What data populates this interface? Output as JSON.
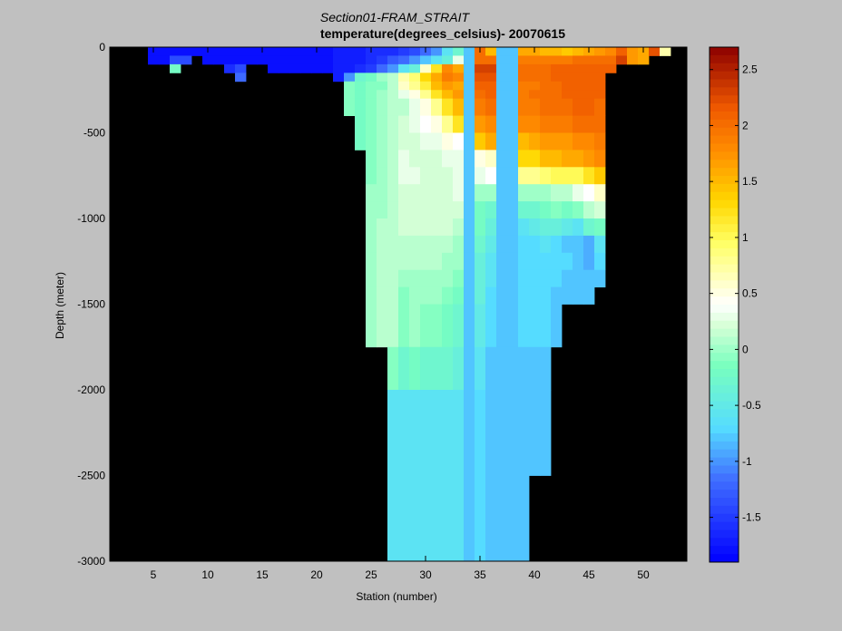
{
  "chart_data": {
    "type": "heatmap",
    "title": "Section01-FRAM_STRAIT",
    "subtitle": "temperature(degrees_celsius)- 20070615",
    "xlabel": "Station (number)",
    "ylabel": "Depth (meter)",
    "xlim": [
      1,
      54
    ],
    "ylim": [
      -3000,
      0
    ],
    "xticks": [
      "5",
      "10",
      "15",
      "20",
      "25",
      "30",
      "35",
      "40",
      "45",
      "50"
    ],
    "yticks": [
      "0",
      "-500",
      "-1000",
      "-1500",
      "-2000",
      "-2500",
      "-3000"
    ],
    "colorbar": {
      "range": [
        -1.9,
        2.7
      ],
      "ticks": [
        "2.5",
        "2",
        "1.5",
        "1",
        "0.5",
        "0",
        "-0.5",
        "-1",
        "-1.5"
      ]
    },
    "colors": {
      "background": "#c0c0c0",
      "no_data": "#000000"
    },
    "station_x_range": [
      4.5,
      50.5
    ],
    "depth_levels": [
      0,
      -50,
      -100,
      -150,
      -200,
      -250,
      -300,
      -400,
      -500,
      -600,
      -700,
      -800,
      -900,
      -1000,
      -1100,
      -1200,
      -1300,
      -1400,
      -1500,
      -1750,
      -2000,
      -2500,
      -3000
    ],
    "stations": [
      [
        -1.8,
        -1.8
      ],
      [
        -1.8,
        -1.8
      ],
      [
        -1.8,
        -1.4,
        -0.2
      ],
      [
        -1.8,
        -1.4
      ],
      [
        -1.8
      ],
      [
        -1.8,
        -1.8
      ],
      [
        -1.8,
        -1.8
      ],
      [
        -1.8,
        -1.8,
        -1.6
      ],
      [
        -1.8,
        -1.8,
        -1.4,
        -1.2
      ],
      [
        -1.8,
        -1.8
      ],
      [
        -1.8,
        -1.8
      ],
      [
        -1.8,
        -1.8,
        -1.8
      ],
      [
        -1.8,
        -1.8,
        -1.8
      ],
      [
        -1.8,
        -1.8,
        -1.8
      ],
      [
        -1.8,
        -1.8,
        -1.8
      ],
      [
        -1.8,
        -1.8,
        -1.8
      ],
      [
        -1.8,
        -1.8,
        -1.8
      ],
      [
        -1.7,
        -1.7,
        -1.7,
        -1.7
      ],
      [
        -1.7,
        -1.7,
        -1.7,
        -1.0,
        -0.1,
        -0.1,
        -0.1
      ],
      [
        -1.7,
        -1.7,
        -1.6,
        -0.3,
        -0.2,
        -0.2,
        -0.2,
        -0.2,
        -0.2
      ],
      [
        -1.6,
        -1.6,
        -1.5,
        -0.2,
        -0.1,
        -0.1,
        -0.1,
        -0.1,
        -0.1,
        -0.1,
        -0.1,
        0.0,
        0.0,
        0.0,
        0.0,
        0.0,
        0.0,
        0.0,
        0.0
      ],
      [
        -1.6,
        -1.5,
        -1.2,
        0.0,
        -0.1,
        0.0,
        0.0,
        0.0,
        0.0,
        0.0,
        0.0,
        0.0,
        0.0,
        0.1,
        0.1,
        0.1,
        0.1,
        0.1,
        0.1
      ],
      [
        -1.6,
        -1.3,
        -1.0,
        0.1,
        0.1,
        0.1,
        0.1,
        0.1,
        0.1,
        0.1,
        0.1,
        0.1,
        0.1,
        0.1,
        0.1,
        0.1,
        0.1,
        0.1,
        0.1,
        -0.1,
        -0.6,
        -0.6
      ],
      [
        -1.5,
        -1.2,
        -0.6,
        0.7,
        0.6,
        0.3,
        0.1,
        0.2,
        0.2,
        0.3,
        0.3,
        0.2,
        0.2,
        0.2,
        0.1,
        0.1,
        0.0,
        -0.1,
        -0.1,
        -0.3,
        -0.6,
        -0.6,
        -1.1
      ],
      [
        -1.4,
        -1.0,
        -0.4,
        0.9,
        0.8,
        0.5,
        0.3,
        0.3,
        0.2,
        0.2,
        0.3,
        0.2,
        0.2,
        0.2,
        0.1,
        0.1,
        0.0,
        0.0,
        0.0,
        -0.2,
        -0.6,
        -0.6,
        -1.1
      ],
      [
        -1.2,
        -0.8,
        0.6,
        1.3,
        1.1,
        0.8,
        0.5,
        0.4,
        0.3,
        0.2,
        0.2,
        0.2,
        0.2,
        0.2,
        0.1,
        0.1,
        0.0,
        0.0,
        -0.1,
        -0.3,
        -0.6,
        -0.6,
        -1.1
      ],
      [
        -1.0,
        -0.6,
        1.2,
        1.6,
        1.5,
        1.2,
        0.8,
        0.5,
        0.3,
        0.2,
        0.2,
        0.2,
        0.2,
        0.2,
        0.1,
        0.1,
        0.0,
        0.0,
        -0.1,
        -0.3,
        -0.6,
        -0.6,
        -1.1
      ],
      [
        -0.6,
        -0.4,
        1.8,
        1.9,
        1.7,
        1.5,
        1.2,
        0.8,
        0.5,
        0.3,
        0.2,
        0.2,
        0.2,
        0.2,
        0.1,
        0.0,
        0.0,
        -0.1,
        -0.2,
        -0.3,
        -0.6,
        -0.6,
        -1.0
      ],
      [
        -0.3,
        0.3,
        1.6,
        1.8,
        1.6,
        1.7,
        1.5,
        1.2,
        0.4,
        0.3,
        0.3,
        0.3,
        0.2,
        0.1,
        0.0,
        0.0,
        -0.1,
        -0.2,
        -0.3,
        -0.4,
        -0.6,
        -0.6,
        -0.8
      ],
      [
        -0.8,
        -0.8,
        -0.8,
        -0.8,
        -0.8,
        -0.8,
        -0.8,
        -0.8,
        -0.8,
        -0.8,
        -0.8,
        -0.8,
        -0.8,
        -0.8,
        -0.8,
        -0.8,
        -0.8,
        -0.8,
        -0.8,
        -0.8,
        -0.8,
        -0.8,
        -0.8
      ],
      [
        2.0,
        2.0,
        2.3,
        2.2,
        2.1,
        2.0,
        1.9,
        1.7,
        1.4,
        0.5,
        0.3,
        0.0,
        -0.2,
        -0.2,
        -0.3,
        -0.4,
        -0.4,
        -0.4,
        -0.5,
        -0.6,
        -0.7,
        -0.7,
        -0.7
      ],
      [
        1.5,
        2.0,
        2.3,
        2.2,
        2.1,
        2.1,
        2.0,
        1.8,
        1.6,
        0.6,
        0.4,
        0.0,
        -0.3,
        -0.4,
        -0.5,
        -0.6,
        -0.6,
        -0.7,
        -0.7,
        -0.8,
        -0.8,
        -0.8
      ],
      [
        -0.8,
        -0.8,
        -0.8,
        -0.8,
        -0.8,
        -0.8,
        -0.8,
        -0.8,
        -0.8,
        -0.8,
        -0.8,
        -0.8,
        -0.8,
        -0.8,
        -0.8,
        -0.8,
        -0.8,
        -0.8,
        -0.8,
        -0.8,
        -0.8,
        -0.8,
        -0.8
      ],
      [
        -0.8,
        -0.8,
        -0.8,
        -0.8,
        -0.8,
        -0.8,
        -0.8,
        -0.8,
        -0.8,
        -0.8,
        -0.8,
        -0.8,
        -0.8,
        -0.8,
        -0.8,
        -0.8,
        -0.8,
        -0.8,
        -0.8,
        -0.8,
        -0.8,
        -0.8,
        -0.8
      ],
      [
        1.6,
        1.9,
        2.0,
        2.0,
        1.9,
        1.9,
        1.9,
        1.8,
        1.5,
        1.3,
        0.8,
        0.0,
        -0.3,
        -0.6,
        -0.7,
        -0.7,
        -0.7,
        -0.7,
        -0.7,
        -0.8,
        -0.8,
        -0.8
      ],
      [
        1.6,
        1.9,
        2.0,
        2.0,
        1.9,
        2.0,
        1.9,
        1.8,
        1.6,
        1.3,
        0.8,
        0.0,
        -0.3,
        -0.5,
        -0.7,
        -0.7,
        -0.7,
        -0.7,
        -0.7,
        -0.8,
        -0.8
      ],
      [
        1.5,
        1.9,
        2.0,
        2.0,
        2.0,
        2.0,
        2.0,
        1.9,
        1.7,
        1.5,
        0.9,
        0.0,
        -0.2,
        -0.4,
        -0.6,
        -0.7,
        -0.7,
        -0.7,
        -0.7,
        -0.8,
        -0.8
      ],
      [
        1.5,
        1.9,
        2.1,
        2.1,
        2.0,
        2.0,
        2.0,
        1.9,
        1.7,
        1.5,
        1.0,
        0.1,
        -0.1,
        -0.4,
        -0.7,
        -0.7,
        -0.7,
        -0.8,
        -0.8
      ],
      [
        1.4,
        1.9,
        2.1,
        2.1,
        2.1,
        2.1,
        2.0,
        1.9,
        1.7,
        1.6,
        1.0,
        0.1,
        -0.2,
        -0.5,
        -0.8,
        -0.7,
        -0.8,
        -0.8
      ],
      [
        1.5,
        2.0,
        2.1,
        2.1,
        2.1,
        2.1,
        2.1,
        2.0,
        1.8,
        1.6,
        1.0,
        0.3,
        -0.1,
        -0.6,
        -0.8,
        -0.8,
        -0.8,
        -0.8
      ],
      [
        1.6,
        2.0,
        2.1,
        2.1,
        2.1,
        2.1,
        2.1,
        2.0,
        1.8,
        1.7,
        1.2,
        0.4,
        0.1,
        -0.3,
        -0.9,
        -0.9,
        -0.8,
        -0.8
      ],
      [
        1.7,
        2.0,
        2.1,
        2.1,
        2.1,
        2.1,
        2.0,
        2.0,
        1.9,
        1.8,
        1.4,
        0.6,
        0.2,
        -0.2,
        -0.6,
        -0.7,
        -0.8
      ],
      [
        1.8,
        2.0,
        2.1
      ],
      [
        2.1,
        2.3
      ],
      [
        1.7,
        1.7
      ],
      [
        1.6,
        1.6
      ],
      [
        2.2
      ],
      [
        0.7
      ]
    ],
    "notes_station_series_key": "stations[i] is the temperature column for station 4.5+i (cell width 1 station), rows follow depth_levels"
  }
}
